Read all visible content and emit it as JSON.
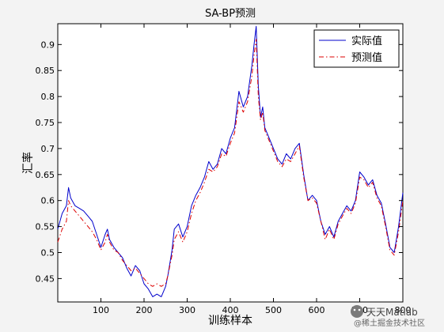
{
  "chart_data": {
    "type": "line",
    "title": "SA-BP预测",
    "xlabel": "训练样本",
    "ylabel": "汇率",
    "xlim": [
      0,
      800
    ],
    "ylim": [
      0.405,
      0.94
    ],
    "xticks": [
      100,
      200,
      300,
      400,
      500,
      600,
      700,
      800
    ],
    "yticks": [
      0.45,
      0.5,
      0.55,
      0.6,
      0.65,
      0.7,
      0.75,
      0.8,
      0.85,
      0.9
    ],
    "grid": false,
    "legend_position": "top-right",
    "series": [
      {
        "name": "实际值",
        "color": "#0000cc",
        "line_style": "solid",
        "x": [
          0,
          10,
          20,
          25,
          30,
          40,
          50,
          60,
          70,
          80,
          90,
          100,
          110,
          115,
          120,
          130,
          140,
          150,
          160,
          170,
          180,
          190,
          200,
          210,
          220,
          230,
          240,
          250,
          255,
          260,
          265,
          270,
          280,
          290,
          300,
          310,
          320,
          330,
          340,
          350,
          360,
          370,
          380,
          390,
          400,
          410,
          420,
          430,
          440,
          450,
          455,
          460,
          465,
          470,
          475,
          480,
          490,
          500,
          510,
          520,
          530,
          540,
          550,
          560,
          570,
          580,
          590,
          600,
          610,
          620,
          630,
          640,
          650,
          660,
          670,
          680,
          690,
          700,
          710,
          720,
          730,
          740,
          750,
          760,
          770,
          780,
          790,
          800
        ],
        "values": [
          0.545,
          0.575,
          0.59,
          0.625,
          0.605,
          0.59,
          0.585,
          0.58,
          0.57,
          0.56,
          0.535,
          0.51,
          0.535,
          0.545,
          0.525,
          0.51,
          0.5,
          0.49,
          0.47,
          0.455,
          0.475,
          0.465,
          0.44,
          0.43,
          0.415,
          0.42,
          0.415,
          0.435,
          0.455,
          0.48,
          0.505,
          0.545,
          0.555,
          0.53,
          0.55,
          0.59,
          0.61,
          0.625,
          0.645,
          0.675,
          0.66,
          0.67,
          0.7,
          0.69,
          0.72,
          0.74,
          0.81,
          0.78,
          0.8,
          0.86,
          0.9,
          0.935,
          0.82,
          0.76,
          0.78,
          0.74,
          0.72,
          0.7,
          0.68,
          0.67,
          0.69,
          0.68,
          0.7,
          0.71,
          0.65,
          0.6,
          0.61,
          0.6,
          0.56,
          0.535,
          0.55,
          0.53,
          0.56,
          0.575,
          0.59,
          0.58,
          0.6,
          0.655,
          0.645,
          0.63,
          0.64,
          0.61,
          0.595,
          0.555,
          0.51,
          0.5,
          0.55,
          0.615
        ]
      },
      {
        "name": "预测值",
        "color": "#dd0000",
        "line_style": "dash-dot",
        "x": [
          0,
          10,
          20,
          25,
          30,
          40,
          50,
          60,
          70,
          80,
          90,
          100,
          110,
          115,
          120,
          130,
          140,
          150,
          160,
          170,
          180,
          190,
          200,
          210,
          220,
          230,
          240,
          250,
          255,
          260,
          265,
          270,
          280,
          290,
          300,
          310,
          320,
          330,
          340,
          350,
          360,
          370,
          380,
          390,
          400,
          410,
          420,
          430,
          440,
          450,
          455,
          460,
          465,
          470,
          475,
          480,
          490,
          500,
          510,
          520,
          530,
          540,
          550,
          560,
          570,
          580,
          590,
          600,
          610,
          620,
          630,
          640,
          650,
          660,
          670,
          680,
          690,
          700,
          710,
          720,
          730,
          740,
          750,
          760,
          770,
          780,
          790,
          800
        ],
        "values": [
          0.52,
          0.545,
          0.56,
          0.6,
          0.59,
          0.58,
          0.57,
          0.56,
          0.55,
          0.54,
          0.525,
          0.505,
          0.52,
          0.535,
          0.52,
          0.505,
          0.5,
          0.485,
          0.475,
          0.465,
          0.47,
          0.46,
          0.45,
          0.44,
          0.435,
          0.44,
          0.435,
          0.44,
          0.455,
          0.475,
          0.495,
          0.525,
          0.54,
          0.52,
          0.54,
          0.575,
          0.6,
          0.615,
          0.635,
          0.66,
          0.655,
          0.665,
          0.69,
          0.685,
          0.71,
          0.73,
          0.79,
          0.77,
          0.79,
          0.84,
          0.88,
          0.91,
          0.8,
          0.755,
          0.77,
          0.735,
          0.715,
          0.695,
          0.675,
          0.665,
          0.68,
          0.675,
          0.69,
          0.705,
          0.645,
          0.6,
          0.605,
          0.595,
          0.56,
          0.525,
          0.545,
          0.525,
          0.555,
          0.57,
          0.585,
          0.575,
          0.595,
          0.645,
          0.64,
          0.625,
          0.635,
          0.605,
          0.59,
          0.55,
          0.505,
          0.495,
          0.54,
          0.6
        ]
      }
    ]
  },
  "watermark": {
    "line1": "天天Matlab",
    "line2": "@稀土掘金技术社区"
  }
}
